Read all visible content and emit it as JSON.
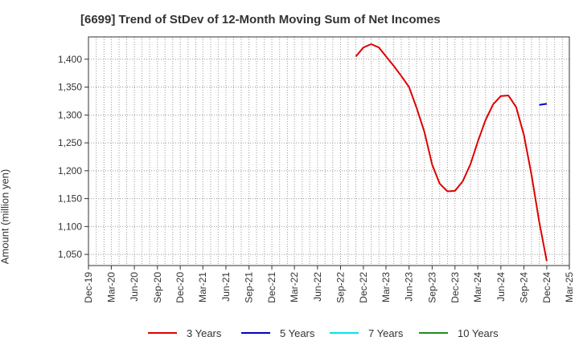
{
  "title": "[6699]  Trend of StDev of 12-Month Moving Sum of Net Incomes",
  "chart_data": {
    "type": "line",
    "title": "[6699]  Trend of StDev of 12-Month Moving Sum of Net Incomes",
    "xlabel": "",
    "ylabel": "Amount (million yen)",
    "x_tick_labels": [
      "Dec-19",
      "Mar-20",
      "Jun-20",
      "Sep-20",
      "Dec-20",
      "Mar-21",
      "Jun-21",
      "Sep-21",
      "Dec-21",
      "Mar-22",
      "Jun-22",
      "Sep-22",
      "Dec-22",
      "Mar-23",
      "Jun-23",
      "Sep-23",
      "Dec-23",
      "Mar-24",
      "Jun-24",
      "Sep-24",
      "Dec-24",
      "Mar-25"
    ],
    "y_ticks": [
      1050,
      1100,
      1150,
      1200,
      1250,
      1300,
      1350,
      1400
    ],
    "y_tick_labels": [
      "1,050",
      "1,100",
      "1,150",
      "1,200",
      "1,250",
      "1,300",
      "1,350",
      "1,400"
    ],
    "ylim": [
      1030,
      1440
    ],
    "grid": true,
    "legend_position": "bottom",
    "series": [
      {
        "name": "3 Years",
        "color": "#dd0000",
        "x": [
          "2022-11",
          "2022-12",
          "2023-01",
          "2023-02",
          "2023-03",
          "2023-04",
          "2023-05",
          "2023-06",
          "2023-07",
          "2023-08",
          "2023-09",
          "2023-10",
          "2023-11",
          "2023-12",
          "2024-01",
          "2024-02",
          "2024-03",
          "2024-04",
          "2024-05",
          "2024-06",
          "2024-07",
          "2024-08",
          "2024-09",
          "2024-10",
          "2024-11",
          "2024-12"
        ],
        "values": [
          1405,
          1421,
          1427,
          1421,
          1405,
          1388,
          1370,
          1350,
          1313,
          1270,
          1211,
          1177,
          1163,
          1164,
          1181,
          1212,
          1252,
          1291,
          1319,
          1334,
          1335,
          1314,
          1264,
          1193,
          1108,
          1038
        ]
      },
      {
        "name": "5 Years",
        "color": "#0000cc",
        "x": [
          "2024-11",
          "2024-12"
        ],
        "values": [
          1318,
          1320
        ]
      },
      {
        "name": "7 Years",
        "color": "#00e5ee",
        "x": [],
        "values": []
      },
      {
        "name": "10 Years",
        "color": "#228b22",
        "x": [],
        "values": []
      }
    ]
  }
}
